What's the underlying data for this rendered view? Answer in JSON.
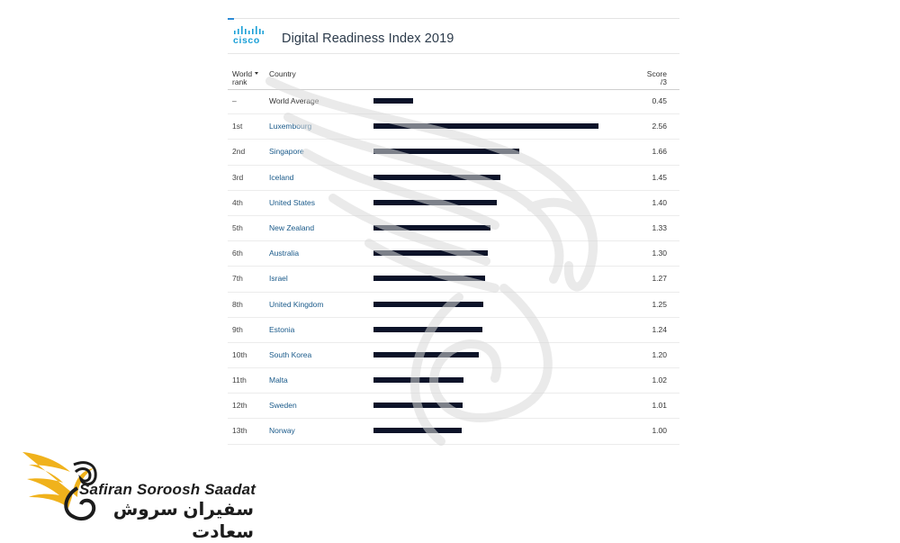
{
  "header": {
    "brand": "cisco",
    "title": "Digital Readiness Index 2019",
    "col_rank_line1": "World",
    "col_rank_line2": "rank",
    "col_country": "Country",
    "col_score_line1": "Score",
    "col_score_line2": "/3"
  },
  "chart_data": {
    "type": "bar",
    "orientation": "horizontal",
    "title": "Digital Readiness Index 2019",
    "xlim": [
      0,
      3
    ],
    "rows": [
      {
        "rank": "–",
        "country": "World Average",
        "score": 0.45
      },
      {
        "rank": "1st",
        "country": "Luxembourg",
        "score": 2.56
      },
      {
        "rank": "2nd",
        "country": "Singapore",
        "score": 1.66
      },
      {
        "rank": "3rd",
        "country": "Iceland",
        "score": 1.45
      },
      {
        "rank": "4th",
        "country": "United States",
        "score": 1.4
      },
      {
        "rank": "5th",
        "country": "New Zealand",
        "score": 1.33
      },
      {
        "rank": "6th",
        "country": "Australia",
        "score": 1.3
      },
      {
        "rank": "7th",
        "country": "Israel",
        "score": 1.27
      },
      {
        "rank": "8th",
        "country": "United Kingdom",
        "score": 1.25
      },
      {
        "rank": "9th",
        "country": "Estonia",
        "score": 1.24
      },
      {
        "rank": "10th",
        "country": "South Korea",
        "score": 1.2
      },
      {
        "rank": "11th",
        "country": "Malta",
        "score": 1.02
      },
      {
        "rank": "12th",
        "country": "Sweden",
        "score": 1.01
      },
      {
        "rank": "13th",
        "country": "Norway",
        "score": 1.0
      }
    ],
    "bar_color": "#0c1329"
  },
  "watermark": {
    "latin": "Safiran Soroosh Saadat",
    "farsi": "سفیران سروش سعادت",
    "accent_color": "#f0b21c"
  }
}
